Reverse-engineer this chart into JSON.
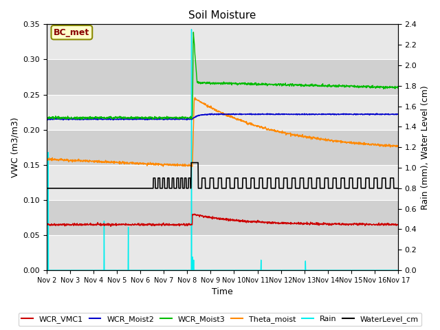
{
  "title": "Soil Moisture",
  "xlabel": "Time",
  "ylabel_left": "VWC (m3/m3)",
  "ylabel_right": "Rain (mm), Water Level (cm)",
  "ylim_left": [
    0.0,
    0.35
  ],
  "ylim_right": [
    0.0,
    2.4
  ],
  "bg_color": "#d8d8d8",
  "bg_color_dark": "#c8c8c8",
  "fig_color": "#ffffff",
  "annotation_box": {
    "text": "BC_met",
    "facecolor": "#ffffcc",
    "edgecolor": "#888800",
    "text_color": "#880000"
  },
  "x_tick_labels": [
    "Nov 2",
    "Nov 3",
    "Nov 4",
    "Nov 5",
    "Nov 6",
    "Nov 7",
    "Nov 8",
    "Nov 9",
    "Nov 10",
    "Nov 11",
    "Nov 12",
    "Nov 13",
    "Nov 14",
    "Nov 15",
    "Nov 16",
    "Nov 17"
  ],
  "yticks_left": [
    0.0,
    0.05,
    0.1,
    0.15,
    0.2,
    0.25,
    0.3,
    0.35
  ],
  "yticks_right": [
    0.0,
    0.2,
    0.4,
    0.6,
    0.8,
    1.0,
    1.2,
    1.4,
    1.6,
    1.8,
    2.0,
    2.2,
    2.4
  ],
  "grid_color": "#ffffff",
  "series": {
    "WCR_VMC1": {
      "color": "#cc0000",
      "lw": 1.0
    },
    "WCR_Moist2": {
      "color": "#0000cc",
      "lw": 1.0
    },
    "WCR_Moist3": {
      "color": "#00bb00",
      "lw": 1.0
    },
    "Theta_moist": {
      "color": "#ff8800",
      "lw": 1.0
    },
    "Rain": {
      "color": "#00eeee",
      "lw": 1.0
    },
    "WaterLevel_cm": {
      "color": "#000000",
      "lw": 1.2
    }
  },
  "rain_events_days": [
    0.07,
    2.45,
    3.48,
    6.18,
    6.22,
    6.28,
    9.15,
    11.05
  ],
  "rain_heights_mm": [
    1.15,
    0.48,
    0.42,
    2.35,
    0.13,
    0.1,
    0.1,
    0.09
  ],
  "event_day": 6.22
}
